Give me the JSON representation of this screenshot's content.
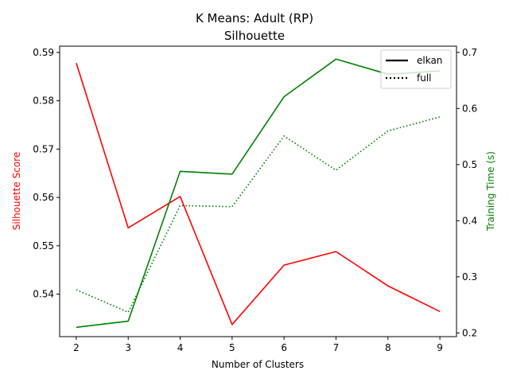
{
  "chart_data": {
    "type": "line",
    "title": "K Means: Adult (RP)",
    "subtitle": "Silhouette",
    "xlabel": "Number of Clusters",
    "ylabel_left": "Silhouette Score",
    "ylabel_right": "Training Time (s)",
    "x": [
      2,
      3,
      4,
      5,
      6,
      7,
      8,
      9
    ],
    "xlim": [
      1.68,
      9.32
    ],
    "ylim_left": [
      0.5312,
      0.5913
    ],
    "ylim_right": [
      0.1934,
      0.7111
    ],
    "xticks": [
      "2",
      "3",
      "4",
      "5",
      "6",
      "7",
      "8",
      "9"
    ],
    "yticks_left": [
      "0.54",
      "0.55",
      "0.56",
      "0.57",
      "0.58",
      "0.59"
    ],
    "yticks_right": [
      "0.2",
      "0.3",
      "0.4",
      "0.5",
      "0.6",
      "0.7"
    ],
    "left_axis_color": "#ff0000",
    "right_axis_color": "#008000",
    "grid": false,
    "legend": {
      "placement": "top-right",
      "entries": [
        {
          "label": "elkan",
          "style": "solid"
        },
        {
          "label": "full",
          "style": "dotted"
        }
      ]
    },
    "series": [
      {
        "axis": "left",
        "color": "#ff0000",
        "style": "solid",
        "values": [
          0.5878,
          0.5537,
          0.5602,
          0.5337,
          0.546,
          0.5488,
          0.5417,
          0.5364
        ]
      },
      {
        "axis": "right",
        "color": "#008000",
        "style": "solid",
        "values": [
          0.21,
          0.221,
          0.488,
          0.483,
          0.621,
          0.688,
          0.661,
          0.667
        ]
      },
      {
        "axis": "right",
        "color": "#008000",
        "style": "dotted",
        "values": [
          0.277,
          0.237,
          0.427,
          0.425,
          0.551,
          0.49,
          0.56,
          0.585
        ]
      }
    ]
  }
}
